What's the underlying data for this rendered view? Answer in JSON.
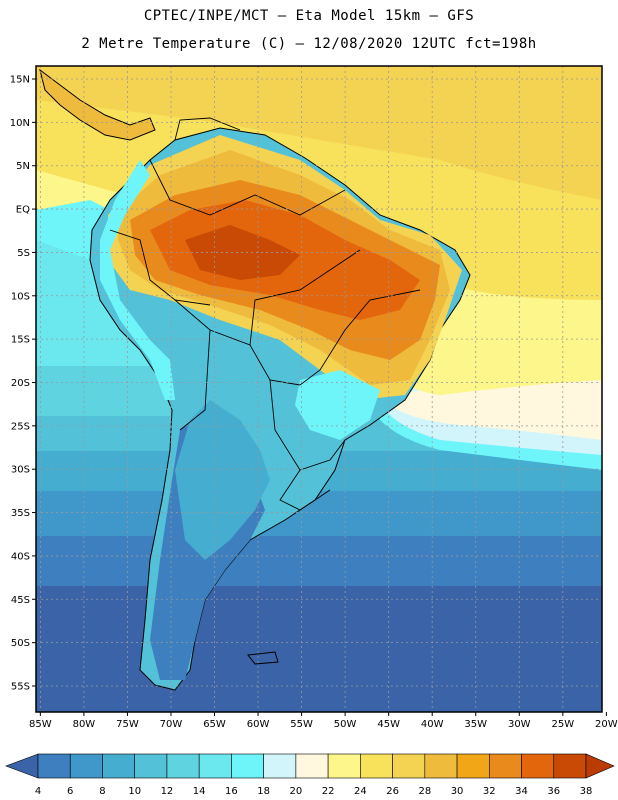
{
  "header": {
    "title_line1": "CPTEC/INPE/MCT –  Eta Model 15km – GFS",
    "title_line2": "2 Metre Temperature (C) – 12/08/2020 12UTC fct=198h"
  },
  "map": {
    "lat_labels": [
      "15N",
      "10N",
      "5N",
      "EQ",
      "5S",
      "10S",
      "15S",
      "20S",
      "25S",
      "30S",
      "35S",
      "40S",
      "45S",
      "50S",
      "55S"
    ],
    "lon_labels": [
      "85W",
      "80W",
      "75W",
      "70W",
      "65W",
      "60W",
      "55W",
      "50W",
      "45W",
      "40W",
      "35W",
      "30W",
      "25W",
      "20W"
    ],
    "lat_values": [
      15,
      10,
      5,
      0,
      -5,
      -10,
      -15,
      -20,
      -25,
      -30,
      -35,
      -40,
      -45,
      -50,
      -55
    ],
    "lon_values": [
      -85,
      -80,
      -75,
      -70,
      -65,
      -60,
      -55,
      -50,
      -45,
      -40,
      -35,
      -30,
      -25,
      -20
    ],
    "lat_range": [
      -58,
      16.5
    ],
    "lon_range": [
      -85.5,
      -20.5
    ]
  },
  "colorbar": {
    "labels": [
      "4",
      "6",
      "8",
      "10",
      "12",
      "14",
      "16",
      "18",
      "20",
      "22",
      "24",
      "26",
      "28",
      "30",
      "32",
      "34",
      "36",
      "38"
    ],
    "colors": [
      "#3b64a8",
      "#3d7fbf",
      "#3f98c9",
      "#45aed0",
      "#53c1d8",
      "#5fd4e0",
      "#6ae8ee",
      "#6df5fa",
      "#d2f5fb",
      "#fff8df",
      "#fdf68a",
      "#f8e25b",
      "#f4d353",
      "#efbb3d",
      "#f1a618",
      "#e98a1c",
      "#e3660c",
      "#c84a05",
      "#bb3b05"
    ]
  }
}
